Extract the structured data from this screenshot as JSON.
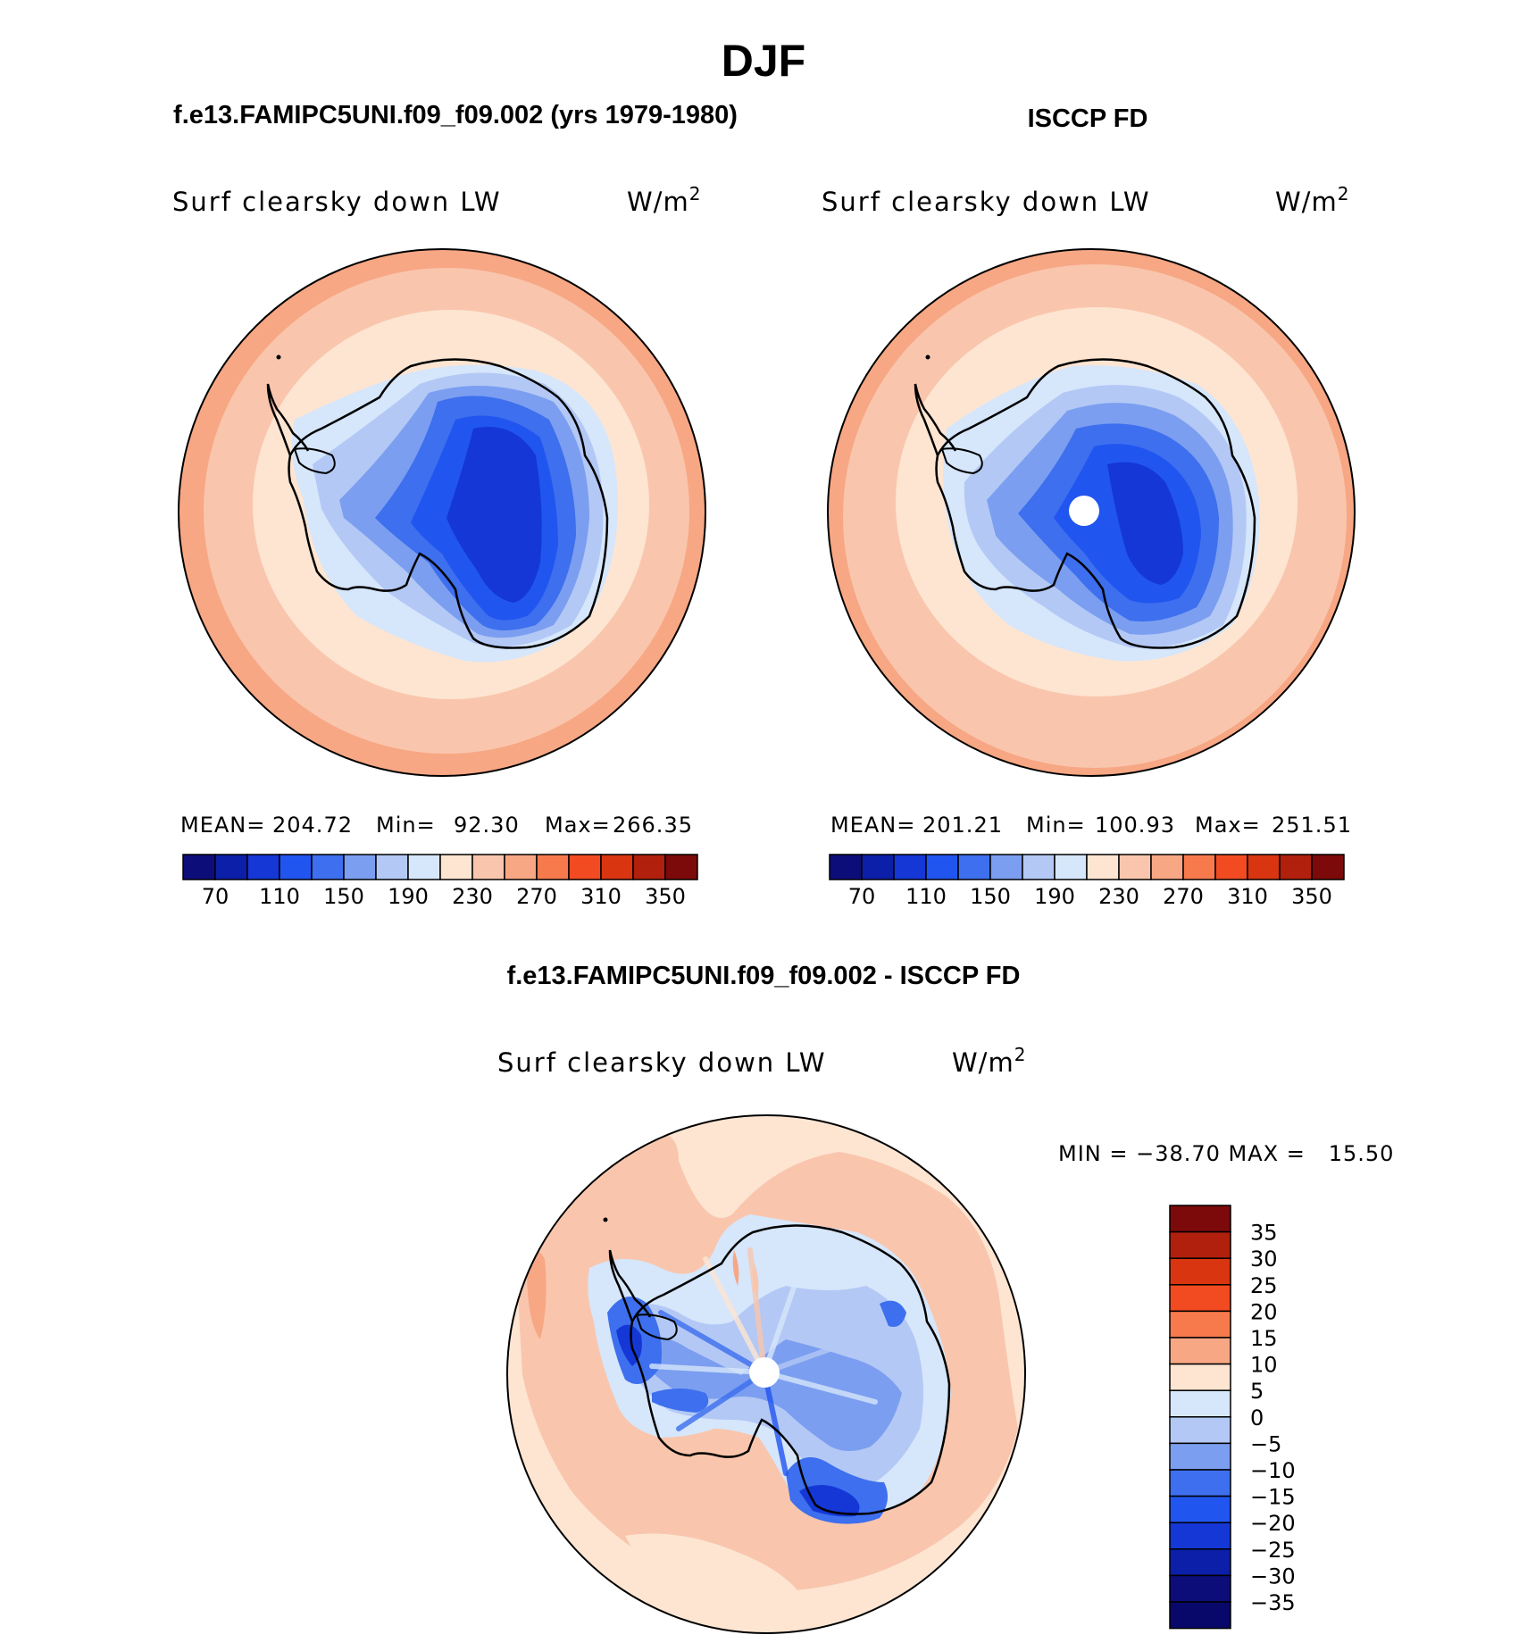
{
  "season_title": "DJF",
  "panels": [
    {
      "heading": "f.e13.FAMIPC5UNI.f09_f09.002 (yrs 1979-1980)",
      "variable": "Surf clearsky down LW",
      "units_base": "W/m",
      "units_exp": "2",
      "stats": {
        "mean_label": "MEAN=",
        "mean": "204.72",
        "min_label": "Min=",
        "min": "92.30",
        "max_label": "Max=",
        "max": "266.35"
      },
      "has_pole_hole": false
    },
    {
      "heading": "ISCCP FD",
      "variable": "Surf clearsky down LW",
      "units_base": "W/m",
      "units_exp": "2",
      "stats": {
        "mean_label": "MEAN=",
        "mean": "201.21",
        "min_label": "Min=",
        "min": "100.93",
        "max_label": "Max=",
        "max": "251.51"
      },
      "has_pole_hole": true
    }
  ],
  "abs_colorbar": {
    "colors": [
      "#0d0d7a",
      "#0c1fa8",
      "#1437d6",
      "#2155f0",
      "#3d6fee",
      "#7b9ef0",
      "#b3c8f5",
      "#d6e6fb",
      "#fde5d2",
      "#f9c6ad",
      "#f7a784",
      "#f77a4d",
      "#f24a21",
      "#d93510",
      "#b0200c",
      "#7d0a0a"
    ],
    "tick_labels": [
      "70",
      "110",
      "150",
      "190",
      "230",
      "270",
      "310",
      "350"
    ]
  },
  "diff_panel": {
    "heading": "f.e13.FAMIPC5UNI.f09_f09.002 - ISCCP FD",
    "variable": "Surf clearsky down LW",
    "units_base": "W/m",
    "units_exp": "2",
    "min_max_label": "MIN = −38.70 MAX =   15.50",
    "colorbar": {
      "colors_top_to_bottom": [
        "#7d0a0a",
        "#b0200c",
        "#d93510",
        "#f24a21",
        "#f77a4d",
        "#f7a784",
        "#fde5d2",
        "#d6e6fb",
        "#b3c8f5",
        "#7b9ef0",
        "#3d6fee",
        "#2155f0",
        "#1437d6",
        "#0c1fa8",
        "#0d0d7a",
        "#08086a"
      ],
      "tick_labels": [
        "35",
        "30",
        "25",
        "20",
        "15",
        "10",
        "5",
        "0",
        "−5",
        "−10",
        "−15",
        "−20",
        "−25",
        "−30",
        "−35"
      ]
    }
  }
}
